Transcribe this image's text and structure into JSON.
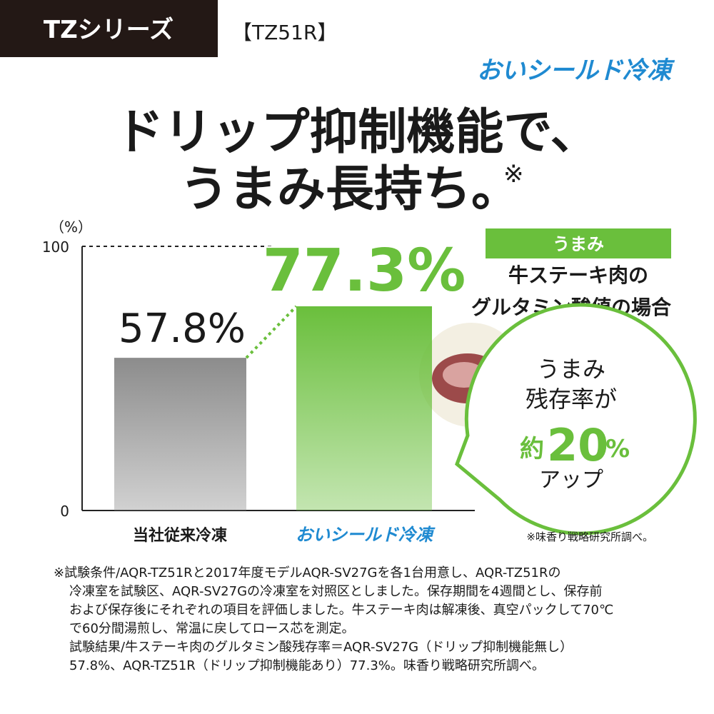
{
  "header": {
    "series": "TZシリーズ",
    "model": "【TZ51R】",
    "logo": "おいシールド冷凍"
  },
  "headline": {
    "line1": "ドリップ抑制機能で、",
    "line2": "うまみ長持ち。",
    "mark": "※"
  },
  "chart_data": {
    "type": "bar",
    "y_label": "（%）",
    "categories": [
      "当社従来冷凍",
      "おいシールド冷凍"
    ],
    "values": [
      57.8,
      77.3
    ],
    "value_labels": [
      "57.8%",
      "77.3%"
    ],
    "colors": [
      "#8c8c8c",
      "#6abf3c"
    ],
    "ylim": [
      0,
      100
    ],
    "yticks": [
      0,
      100
    ],
    "grid": true
  },
  "callout": {
    "tag": "うまみ",
    "line1": "牛ステーキ肉の",
    "line2": "グルタミン酸値の場合"
  },
  "bubble": {
    "line1": "うまみ",
    "line2": "残存率が",
    "prefix": "約",
    "number": "20",
    "unit": "%",
    "line4": "アップ"
  },
  "source": "※味香り戦略研究所調べ。",
  "footnote": [
    "※試験条件/AQR-TZ51Rと2017年度モデルAQR-SV27Gを各1台用意し、AQR-TZ51Rの",
    "冷凍室を試験区、AQR-SV27Gの冷凍室を対照区としました。保存期間を4週間とし、保存前",
    "および保存後にそれぞれの項目を評価しました。牛ステーキ肉は解凍後、真空パックして70℃",
    "で60分間湯煎し、常温に戻してロース芯を測定。",
    "試験結果/牛ステーキ肉のグルタミン酸残存率＝AQR-SV27G（ドリップ抑制機能無し）",
    "57.8%、AQR-TZ51R（ドリップ抑制機能あり）77.3%。味香り戦略研究所調べ。"
  ]
}
